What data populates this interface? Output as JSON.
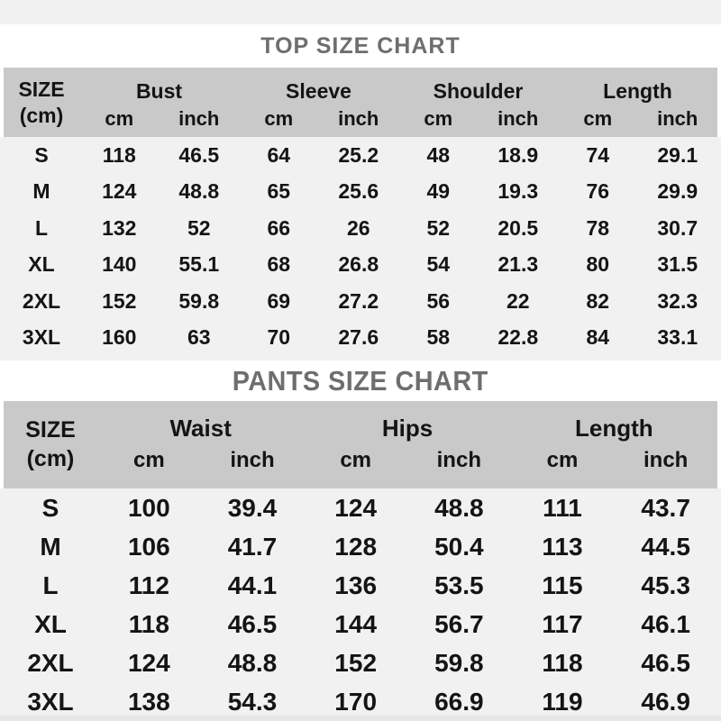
{
  "colors": {
    "page_bg": "#f1f1f2",
    "title_band_bg": "#ffffff",
    "header_bg": "#c9c9c9",
    "title_text": "#6e6e6e",
    "body_text": "#141414"
  },
  "top_chart": {
    "title": "TOP SIZE CHART",
    "size_label": "SIZE",
    "size_unit": "(cm)",
    "groups": [
      "Bust",
      "Sleeve",
      "Shoulder",
      "Length"
    ],
    "unit_row": [
      "cm",
      "inch",
      "cm",
      "inch",
      "cm",
      "inch",
      "cm",
      "inch"
    ],
    "rows": [
      {
        "size": "S",
        "cells": [
          "118",
          "46.5",
          "64",
          "25.2",
          "48",
          "18.9",
          "74",
          "29.1"
        ]
      },
      {
        "size": "M",
        "cells": [
          "124",
          "48.8",
          "65",
          "25.6",
          "49",
          "19.3",
          "76",
          "29.9"
        ]
      },
      {
        "size": "L",
        "cells": [
          "132",
          "52",
          "66",
          "26",
          "52",
          "20.5",
          "78",
          "30.7"
        ]
      },
      {
        "size": "XL",
        "cells": [
          "140",
          "55.1",
          "68",
          "26.8",
          "54",
          "21.3",
          "80",
          "31.5"
        ]
      },
      {
        "size": "2XL",
        "cells": [
          "152",
          "59.8",
          "69",
          "27.2",
          "56",
          "22",
          "82",
          "32.3"
        ]
      },
      {
        "size": "3XL",
        "cells": [
          "160",
          "63",
          "70",
          "27.6",
          "58",
          "22.8",
          "84",
          "33.1"
        ]
      }
    ]
  },
  "pants_chart": {
    "title": "PANTS SIZE CHART",
    "size_label": "SIZE",
    "size_unit": "(cm)",
    "groups": [
      "Waist",
      "Hips",
      "Length"
    ],
    "unit_row": [
      "cm",
      "inch",
      "cm",
      "inch",
      "cm",
      "inch"
    ],
    "rows": [
      {
        "size": "S",
        "cells": [
          "100",
          "39.4",
          "124",
          "48.8",
          "111",
          "43.7"
        ]
      },
      {
        "size": "M",
        "cells": [
          "106",
          "41.7",
          "128",
          "50.4",
          "113",
          "44.5"
        ]
      },
      {
        "size": "L",
        "cells": [
          "112",
          "44.1",
          "136",
          "53.5",
          "115",
          "45.3"
        ]
      },
      {
        "size": "XL",
        "cells": [
          "118",
          "46.5",
          "144",
          "56.7",
          "117",
          "46.1"
        ]
      },
      {
        "size": "2XL",
        "cells": [
          "124",
          "48.8",
          "152",
          "59.8",
          "118",
          "46.5"
        ]
      },
      {
        "size": "3XL",
        "cells": [
          "138",
          "54.3",
          "170",
          "66.9",
          "119",
          "46.9"
        ]
      }
    ]
  },
  "chart_data": [
    {
      "type": "table",
      "title": "TOP SIZE CHART",
      "columns": [
        "SIZE (cm)",
        "Bust cm",
        "Bust inch",
        "Sleeve cm",
        "Sleeve inch",
        "Shoulder cm",
        "Shoulder inch",
        "Length cm",
        "Length inch"
      ],
      "rows": [
        [
          "S",
          118,
          46.5,
          64,
          25.2,
          48,
          18.9,
          74,
          29.1
        ],
        [
          "M",
          124,
          48.8,
          65,
          25.6,
          49,
          19.3,
          76,
          29.9
        ],
        [
          "L",
          132,
          52,
          66,
          26,
          52,
          20.5,
          78,
          30.7
        ],
        [
          "XL",
          140,
          55.1,
          68,
          26.8,
          54,
          21.3,
          80,
          31.5
        ],
        [
          "2XL",
          152,
          59.8,
          69,
          27.2,
          56,
          22,
          82,
          32.3
        ],
        [
          "3XL",
          160,
          63,
          70,
          27.6,
          58,
          22.8,
          84,
          33.1
        ]
      ]
    },
    {
      "type": "table",
      "title": "PANTS SIZE CHART",
      "columns": [
        "SIZE (cm)",
        "Waist cm",
        "Waist inch",
        "Hips cm",
        "Hips inch",
        "Length cm",
        "Length inch"
      ],
      "rows": [
        [
          "S",
          100,
          39.4,
          124,
          48.8,
          111,
          43.7
        ],
        [
          "M",
          106,
          41.7,
          128,
          50.4,
          113,
          44.5
        ],
        [
          "L",
          112,
          44.1,
          136,
          53.5,
          115,
          45.3
        ],
        [
          "XL",
          118,
          46.5,
          144,
          56.7,
          117,
          46.1
        ],
        [
          "2XL",
          124,
          48.8,
          152,
          59.8,
          118,
          46.5
        ],
        [
          "3XL",
          138,
          54.3,
          170,
          66.9,
          119,
          46.9
        ]
      ]
    }
  ]
}
